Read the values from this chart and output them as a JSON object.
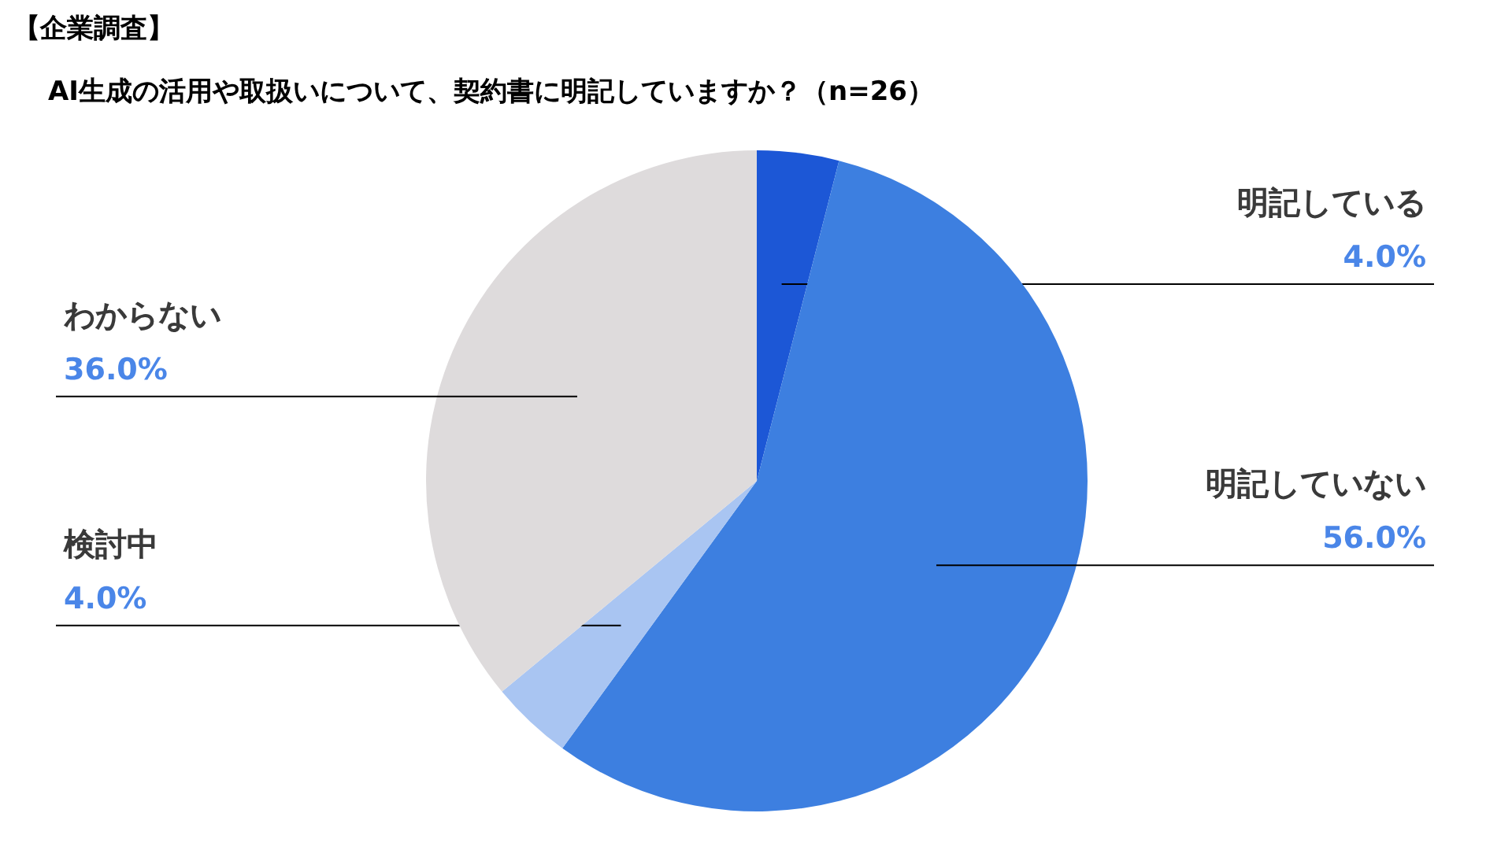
{
  "chart_data": {
    "type": "pie",
    "title": "【企業調査】",
    "subtitle": "AI生成の活用や取扱いについて、契約書に明記していますか？（n=26）",
    "categories": [
      "明記している",
      "明記していない",
      "検討中",
      "わからない"
    ],
    "values": [
      4,
      56,
      4,
      36
    ],
    "value_labels": [
      "4.0%",
      "56.0%",
      "4.0%",
      "36.0%"
    ],
    "colors": [
      "#1c57d6",
      "#3d7fe0",
      "#a9c5f2",
      "#dedbdc"
    ]
  }
}
